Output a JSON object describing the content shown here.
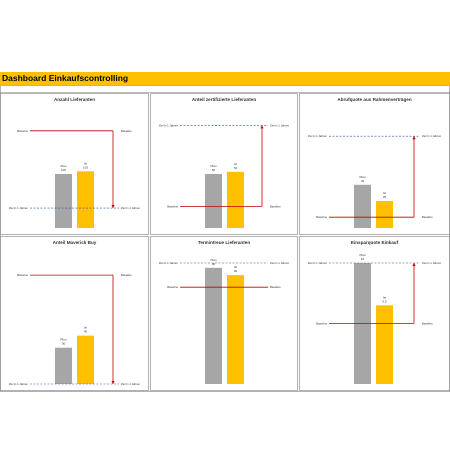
{
  "dashboard": {
    "title": "Dashboard Einkaufscontrolling"
  },
  "colors": {
    "plan": "#a6a6a6",
    "ist": "#ffc000",
    "arrow": "#c00000",
    "ziel_line": "#2f5597",
    "ausgang_line": "#c00000"
  },
  "chart_data": [
    {
      "type": "bar",
      "title": "Anzahl Lieferanten",
      "categories": [
        "Plan",
        "Ist"
      ],
      "values": [
        100,
        105
      ],
      "data_labels": [
        "Plan\n100",
        "Ist\n105"
      ],
      "start_label": "Baseline",
      "start_value": 180,
      "target_label": "Ziel in 1 Jahren",
      "target_value": 37,
      "arrow": "down",
      "ylim": [
        0,
        200
      ]
    },
    {
      "type": "bar",
      "title": "Anteil zertifizierte Lieferanten",
      "categories": [
        "Plan",
        "Ist"
      ],
      "values": [
        50,
        52
      ],
      "data_labels": [
        "Plan\n50",
        "Ist\n52"
      ],
      "start_label": "Baseline",
      "start_value": 20,
      "target_label": "Ziel in 1 Jahren",
      "target_value": 95,
      "arrow": "up",
      "ylim": [
        0,
        100
      ]
    },
    {
      "type": "bar",
      "title": "Abrufquote aus Rahmenverträgen",
      "categories": [
        "Plan",
        "Ist"
      ],
      "values": [
        40,
        25
      ],
      "data_labels": [
        "Plan\n40",
        "Ist\n25"
      ],
      "start_label": "Baseline",
      "start_value": 10,
      "target_label": "Ziel in 1 Jahren",
      "target_value": 85,
      "arrow": "up",
      "ylim": [
        0,
        100
      ]
    },
    {
      "type": "bar",
      "title": "Anteil Maverick Buy",
      "categories": [
        "Plan",
        "Ist"
      ],
      "values": [
        30,
        40
      ],
      "data_labels": [
        "Plan\n30",
        "Ist\n40"
      ],
      "start_label": "Baseline",
      "start_value": 90,
      "target_label": "Ziel in 1 Jahren",
      "target_value": 0,
      "arrow": "down",
      "ylim": [
        0,
        100
      ]
    },
    {
      "type": "bar",
      "title": "Termintreue Lieferanten",
      "categories": [
        "Plan",
        "Ist"
      ],
      "values": [
        96,
        90
      ],
      "data_labels": [
        "Plan\n96",
        "Ist\n90"
      ],
      "start_label": "Baseline",
      "start_value": 80,
      "target_label": "Ziel in 1 Jahren",
      "target_value": 100,
      "arrow": "none",
      "ylim": [
        0,
        100
      ]
    },
    {
      "type": "bar",
      "title": "Einsparquote Einkauf",
      "categories": [
        "Plan",
        "Ist"
      ],
      "values": [
        10,
        6.5
      ],
      "data_labels": [
        "Plan\n10",
        "Ist\n6,5"
      ],
      "start_label": "Baseline",
      "start_value": 5,
      "target_label": "Ziel in 1 Jahren",
      "target_value": 10,
      "arrow": "up",
      "ylim": [
        0,
        10
      ]
    }
  ]
}
